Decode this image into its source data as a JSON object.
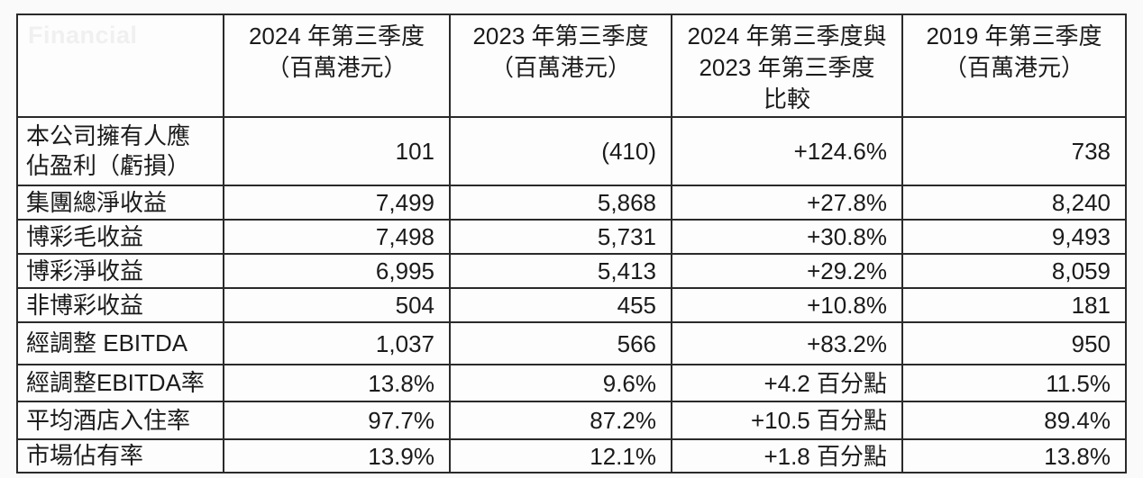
{
  "watermark": {
    "text": "Financial"
  },
  "colors": {
    "background": "#fafafa",
    "cell_background": "#fdfdfd",
    "border": "#2a2a2a",
    "text": "#1b1b1b",
    "watermark": "#f0f0f0"
  },
  "table": {
    "columns": [
      {
        "lines": [
          "2024 年第三季度",
          "（百萬港元）"
        ]
      },
      {
        "lines": [
          "2023 年第三季度",
          "（百萬港元）"
        ]
      },
      {
        "lines": [
          "2024 年第三季度與",
          "2023 年第三季度",
          "比較"
        ]
      },
      {
        "lines": [
          "2019 年第三季度",
          "（百萬港元）"
        ]
      }
    ],
    "rows": [
      {
        "label": "本公司擁有人應佔盈利（虧損）",
        "values": [
          "101",
          "(410)",
          "+124.6%",
          "738"
        ]
      },
      {
        "label": "集團總淨收益",
        "values": [
          "7,499",
          "5,868",
          "+27.8%",
          "8,240"
        ]
      },
      {
        "label": "博彩毛收益",
        "values": [
          "7,498",
          "5,731",
          "+30.8%",
          "9,493"
        ]
      },
      {
        "label": "博彩淨收益",
        "values": [
          "6,995",
          "5,413",
          "+29.2%",
          "8,059"
        ]
      },
      {
        "label": "非博彩收益",
        "values": [
          "504",
          "455",
          "+10.8%",
          "181"
        ]
      },
      {
        "label": "經調整 EBITDA",
        "values": [
          "1,037",
          "566",
          "+83.2%",
          "950"
        ]
      },
      {
        "label": "經調整EBITDA率",
        "values": [
          "13.8%",
          "9.6%",
          "+4.2 百分點",
          "11.5%"
        ]
      },
      {
        "label": "平均酒店入住率",
        "values": [
          "97.7%",
          "87.2%",
          "+10.5 百分點",
          "89.4%"
        ]
      },
      {
        "label": "市場佔有率",
        "values": [
          "13.9%",
          "12.1%",
          "+1.8 百分點",
          "13.8%"
        ]
      }
    ]
  }
}
